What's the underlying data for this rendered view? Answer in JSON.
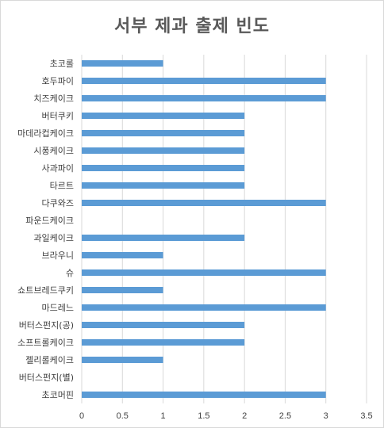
{
  "chart_data": {
    "type": "bar",
    "orientation": "horizontal",
    "title": "서부 제과 출제 빈도",
    "categories": [
      "초코롤",
      "호두파이",
      "치즈케이크",
      "버터쿠키",
      "마데라컵케이크",
      "시퐁케이크",
      "사과파이",
      "타르트",
      "다쿠와즈",
      "파운드케이크",
      "과일케이크",
      "브라우니",
      "슈",
      "쇼트브레드쿠키",
      "마드레느",
      "버터스펀지(공)",
      "소프트롤케이크",
      "젤리롤케이크",
      "버터스펀지(별)",
      "초코머핀"
    ],
    "values": [
      1,
      3,
      3,
      2,
      2,
      2,
      2,
      2,
      3,
      0,
      2,
      1,
      3,
      1,
      3,
      2,
      2,
      1,
      0,
      3
    ],
    "xlim": [
      0,
      3.5
    ],
    "xticks": [
      "0",
      "0.5",
      "1",
      "1.5",
      "2",
      "2.5",
      "3",
      "3.5"
    ],
    "grid": true,
    "legend": "none",
    "bar_color": "#5b9bd5",
    "grid_color": "#d9d9d9"
  }
}
